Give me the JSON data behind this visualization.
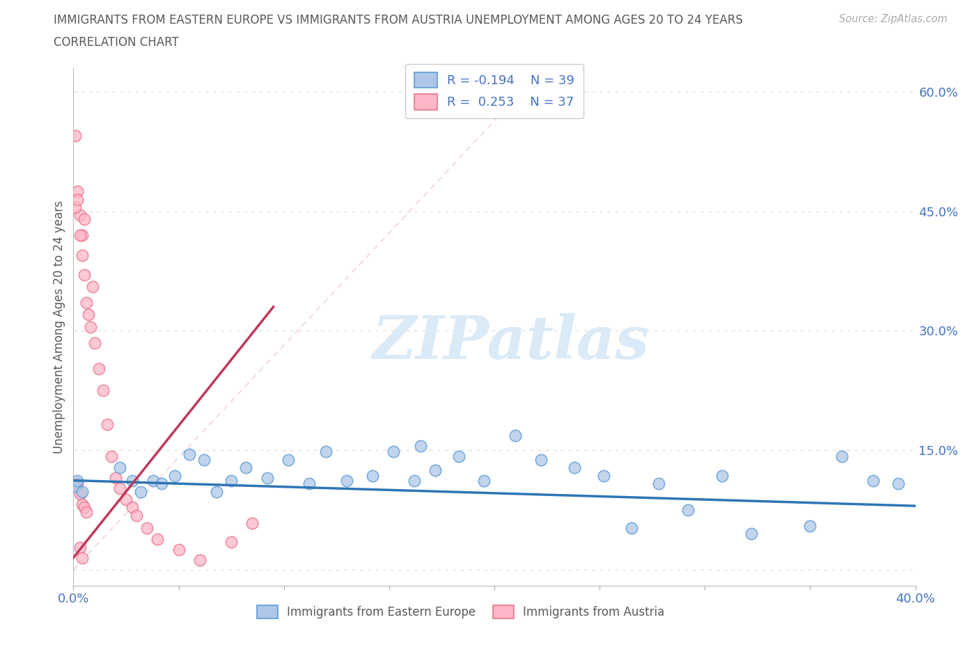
{
  "title_line1": "IMMIGRANTS FROM EASTERN EUROPE VS IMMIGRANTS FROM AUSTRIA UNEMPLOYMENT AMONG AGES 20 TO 24 YEARS",
  "title_line2": "CORRELATION CHART",
  "source": "Source: ZipAtlas.com",
  "ylabel": "Unemployment Among Ages 20 to 24 years",
  "xlim": [
    0.0,
    0.4
  ],
  "ylim": [
    -0.02,
    0.63
  ],
  "color_blue": "#aec7e8",
  "color_pink": "#ffb6c8",
  "edge_blue": "#5b9bd5",
  "edge_pink": "#e8748a",
  "line_blue": "#2e75b6",
  "line_pink": "#c0395a",
  "tick_color": "#4472c4",
  "watermark_color": "#dbeaf7",
  "bg_color": "#ffffff",
  "title_color": "#595959",
  "label_color": "#595959",
  "grid_color": "#d9d9d9",
  "legend_r1": "R = -0.194",
  "legend_n1": "N = 39",
  "legend_r2": "R =  0.253",
  "legend_n2": "N = 37",
  "blue_x": [
    0.001,
    0.002,
    0.004,
    0.022,
    0.028,
    0.032,
    0.038,
    0.042,
    0.048,
    0.055,
    0.062,
    0.068,
    0.075,
    0.082,
    0.092,
    0.102,
    0.112,
    0.12,
    0.13,
    0.142,
    0.152,
    0.162,
    0.172,
    0.183,
    0.195,
    0.21,
    0.222,
    0.238,
    0.252,
    0.265,
    0.278,
    0.292,
    0.165,
    0.308,
    0.322,
    0.35,
    0.365,
    0.38,
    0.392
  ],
  "blue_y": [
    0.105,
    0.112,
    0.098,
    0.128,
    0.112,
    0.098,
    0.112,
    0.108,
    0.118,
    0.145,
    0.138,
    0.098,
    0.112,
    0.128,
    0.115,
    0.138,
    0.108,
    0.148,
    0.112,
    0.118,
    0.148,
    0.112,
    0.125,
    0.142,
    0.112,
    0.168,
    0.138,
    0.128,
    0.118,
    0.052,
    0.108,
    0.075,
    0.155,
    0.118,
    0.045,
    0.055,
    0.142,
    0.112,
    0.108
  ],
  "pink_x": [
    0.001,
    0.002,
    0.003,
    0.004,
    0.005,
    0.001,
    0.002,
    0.003,
    0.004,
    0.005,
    0.006,
    0.007,
    0.008,
    0.009,
    0.01,
    0.012,
    0.014,
    0.016,
    0.018,
    0.02,
    0.002,
    0.003,
    0.004,
    0.005,
    0.006,
    0.022,
    0.025,
    0.028,
    0.03,
    0.035,
    0.04,
    0.05,
    0.06,
    0.075,
    0.085,
    0.003,
    0.004
  ],
  "pink_y": [
    0.545,
    0.475,
    0.445,
    0.42,
    0.44,
    0.455,
    0.465,
    0.42,
    0.395,
    0.37,
    0.335,
    0.32,
    0.305,
    0.355,
    0.285,
    0.252,
    0.225,
    0.182,
    0.142,
    0.115,
    0.108,
    0.095,
    0.082,
    0.078,
    0.072,
    0.102,
    0.088,
    0.078,
    0.068,
    0.052,
    0.038,
    0.025,
    0.012,
    0.035,
    0.058,
    0.028,
    0.015
  ],
  "blue_trend_x": [
    0.0,
    0.4
  ],
  "blue_trend_y": [
    0.112,
    0.08
  ],
  "pink_trend_x": [
    0.0,
    0.095
  ],
  "pink_trend_y": [
    0.015,
    0.33
  ],
  "ytick_pos": [
    0.0,
    0.15,
    0.3,
    0.45,
    0.6
  ],
  "ytick_labels": [
    "",
    "15.0%",
    "30.0%",
    "45.0%",
    "60.0%"
  ],
  "xtick_pos": [
    0.0,
    0.05,
    0.1,
    0.15,
    0.2,
    0.25,
    0.3,
    0.35,
    0.4
  ],
  "xtick_labels": [
    "0.0%",
    "",
    "",
    "",
    "",
    "",
    "",
    "",
    "40.0%"
  ]
}
